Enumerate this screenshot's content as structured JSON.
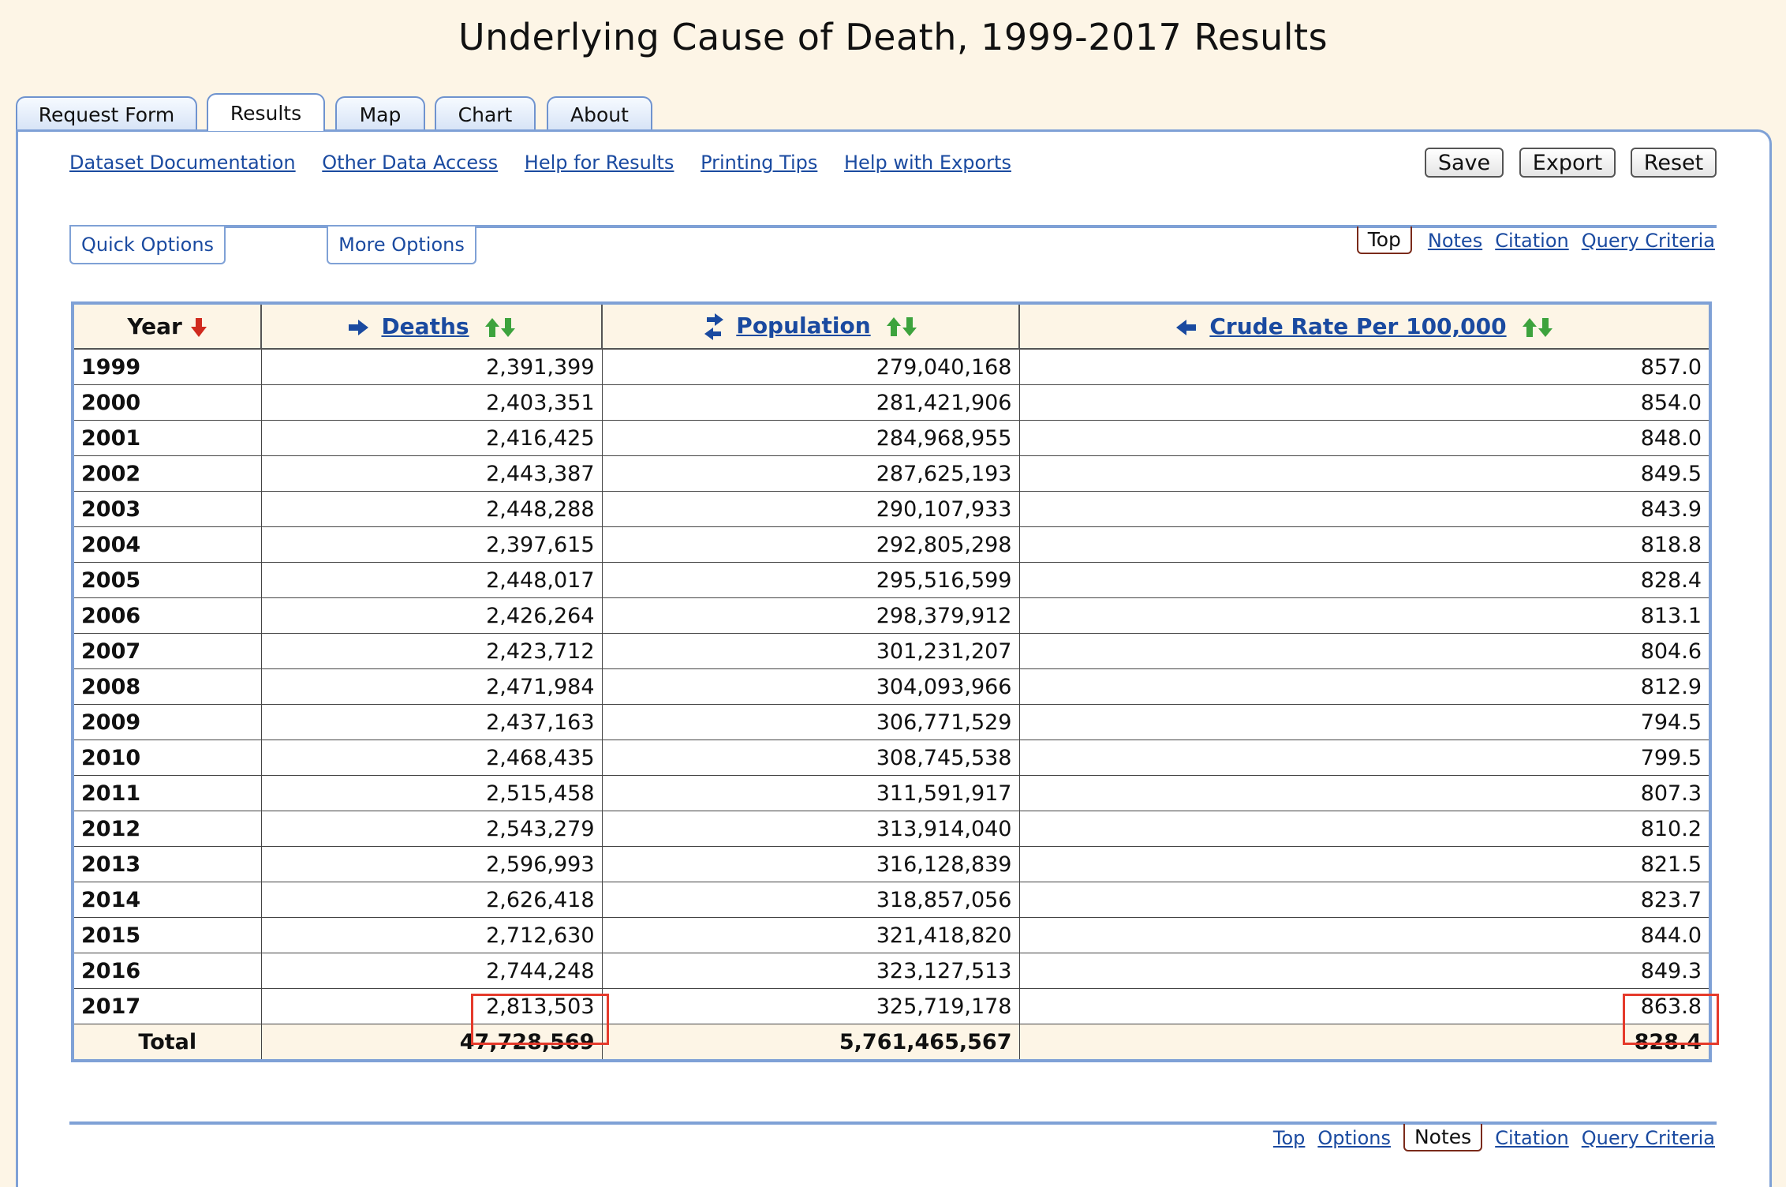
{
  "page_title": "Underlying Cause of Death, 1999-2017 Results",
  "tabs": [
    "Request Form",
    "Results",
    "Map",
    "Chart",
    "About"
  ],
  "active_tab": "Results",
  "top_links": [
    "Dataset Documentation",
    "Other Data Access",
    "Help for Results",
    "Printing Tips",
    "Help with Exports"
  ],
  "buttons": {
    "save": "Save",
    "export": "Export",
    "reset": "Reset"
  },
  "option_tabs": {
    "quick": "Quick Options",
    "more": "More Options"
  },
  "nav_top": {
    "current": "Top",
    "links": [
      "Notes",
      "Citation",
      "Query Criteria"
    ]
  },
  "nav_bottom": {
    "before": [
      "Top",
      "Options"
    ],
    "current": "Notes",
    "after": [
      "Citation",
      "Query Criteria"
    ]
  },
  "table": {
    "headers": {
      "year": "Year",
      "deaths": "Deaths",
      "population": "Population",
      "rate": "Crude Rate Per 100,000"
    },
    "rows": [
      [
        "1999",
        "2,391,399",
        "279,040,168",
        "857.0"
      ],
      [
        "2000",
        "2,403,351",
        "281,421,906",
        "854.0"
      ],
      [
        "2001",
        "2,416,425",
        "284,968,955",
        "848.0"
      ],
      [
        "2002",
        "2,443,387",
        "287,625,193",
        "849.5"
      ],
      [
        "2003",
        "2,448,288",
        "290,107,933",
        "843.9"
      ],
      [
        "2004",
        "2,397,615",
        "292,805,298",
        "818.8"
      ],
      [
        "2005",
        "2,448,017",
        "295,516,599",
        "828.4"
      ],
      [
        "2006",
        "2,426,264",
        "298,379,912",
        "813.1"
      ],
      [
        "2007",
        "2,423,712",
        "301,231,207",
        "804.6"
      ],
      [
        "2008",
        "2,471,984",
        "304,093,966",
        "812.9"
      ],
      [
        "2009",
        "2,437,163",
        "306,771,529",
        "794.5"
      ],
      [
        "2010",
        "2,468,435",
        "308,745,538",
        "799.5"
      ],
      [
        "2011",
        "2,515,458",
        "311,591,917",
        "807.3"
      ],
      [
        "2012",
        "2,543,279",
        "313,914,040",
        "810.2"
      ],
      [
        "2013",
        "2,596,993",
        "316,128,839",
        "821.5"
      ],
      [
        "2014",
        "2,626,418",
        "318,857,056",
        "823.7"
      ],
      [
        "2015",
        "2,712,630",
        "321,418,820",
        "844.0"
      ],
      [
        "2016",
        "2,744,248",
        "323,127,513",
        "849.3"
      ],
      [
        "2017",
        "2,813,503",
        "325,719,178",
        "863.8"
      ]
    ],
    "total": [
      "Total",
      "47,728,569",
      "5,761,465,567",
      "828.4"
    ]
  },
  "colors": {
    "background": "#fdf5e6",
    "panel_border": "#7fa1d6",
    "link": "#1a4aa0",
    "highlight": "#e53a2b",
    "sort_up": "#3da33d",
    "sort_down": "#d02a1e"
  }
}
